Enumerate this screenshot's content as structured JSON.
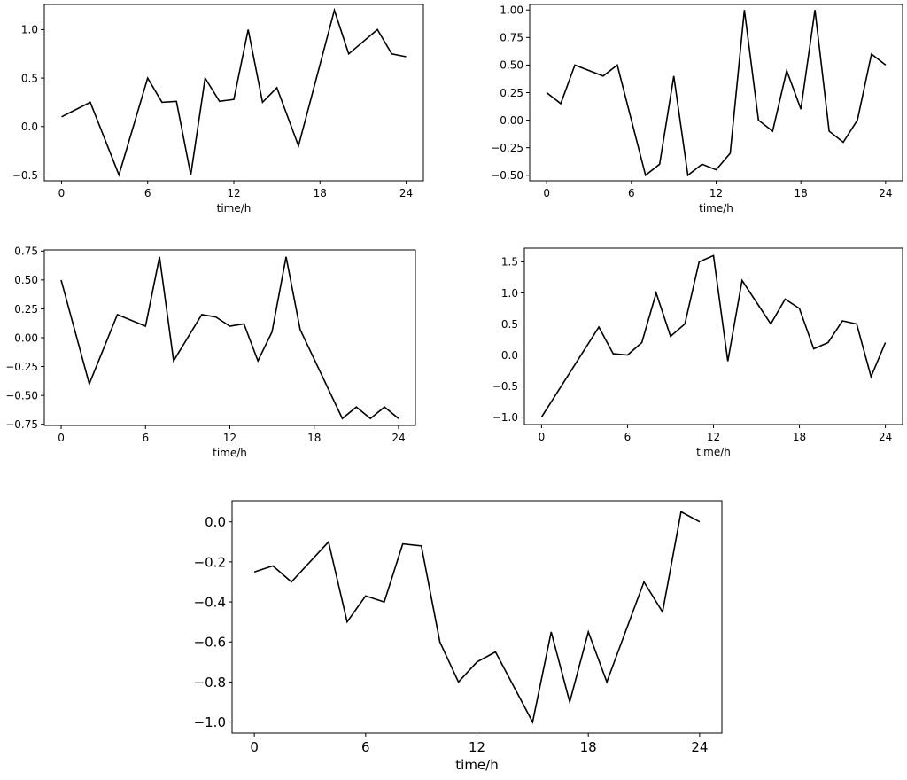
{
  "chart_data": [
    {
      "type": "line",
      "xlabel": "time/h",
      "ylabel": "",
      "title": "",
      "grid": false,
      "legend": "none",
      "xlim": [
        -1.2,
        25.2
      ],
      "ylim": [
        -0.56,
        1.26
      ],
      "xticks": [
        0,
        6,
        12,
        18,
        24
      ],
      "xtick_labels": [
        "0",
        "6",
        "12",
        "18",
        "24"
      ],
      "yticks": [
        -0.5,
        0.0,
        0.5,
        1.0
      ],
      "ytick_labels": [
        "−0.5",
        "0.0",
        "0.5",
        "1.0"
      ],
      "series": [
        {
          "color": "#000000",
          "x": [
            0,
            2,
            4,
            6,
            7,
            8,
            9,
            10,
            11,
            12,
            13,
            14,
            15,
            16.5,
            19,
            20,
            22,
            23,
            24
          ],
          "y": [
            0.1,
            0.25,
            -0.5,
            0.5,
            0.25,
            0.26,
            -0.5,
            0.5,
            0.26,
            0.28,
            1.0,
            0.25,
            0.4,
            -0.2,
            1.2,
            0.75,
            1.0,
            0.75,
            0.72
          ]
        }
      ]
    },
    {
      "type": "line",
      "xlabel": "time/h",
      "ylabel": "",
      "title": "",
      "grid": false,
      "legend": "none",
      "xlim": [
        -1.2,
        25.2
      ],
      "ylim": [
        -0.55,
        1.05
      ],
      "xticks": [
        0,
        6,
        12,
        18,
        24
      ],
      "xtick_labels": [
        "0",
        "6",
        "12",
        "18",
        "24"
      ],
      "yticks": [
        -0.5,
        -0.25,
        0.0,
        0.25,
        0.5,
        0.75,
        1.0
      ],
      "ytick_labels": [
        "−0.50",
        "−0.25",
        "0.00",
        "0.25",
        "0.50",
        "0.75",
        "1.00"
      ],
      "series": [
        {
          "color": "#000000",
          "x": [
            0,
            1,
            2,
            4,
            5,
            7,
            8,
            9,
            10,
            11,
            12,
            13,
            14,
            15,
            16,
            17,
            18,
            19,
            20,
            21,
            22,
            23,
            24
          ],
          "y": [
            0.25,
            0.15,
            0.5,
            0.4,
            0.5,
            -0.5,
            -0.4,
            0.4,
            -0.5,
            -0.4,
            -0.45,
            -0.3,
            1.0,
            0.0,
            -0.1,
            0.45,
            0.1,
            1.0,
            -0.1,
            -0.2,
            0.0,
            0.6,
            0.5
          ]
        }
      ]
    },
    {
      "type": "line",
      "xlabel": "time/h",
      "ylabel": "",
      "title": "",
      "grid": false,
      "legend": "none",
      "xlim": [
        -1.2,
        25.2
      ],
      "ylim": [
        -0.76,
        0.76
      ],
      "xticks": [
        0,
        6,
        12,
        18,
        24
      ],
      "xtick_labels": [
        "0",
        "6",
        "12",
        "18",
        "24"
      ],
      "yticks": [
        -0.75,
        -0.5,
        -0.25,
        0.0,
        0.25,
        0.5,
        0.75
      ],
      "ytick_labels": [
        "−0.75",
        "−0.50",
        "−0.25",
        "0.00",
        "0.25",
        "0.50",
        "0.75"
      ],
      "series": [
        {
          "color": "#000000",
          "x": [
            0,
            2,
            4,
            6,
            7,
            8,
            10,
            11,
            12,
            13,
            14,
            15,
            16,
            17,
            20,
            21,
            22,
            23,
            24
          ],
          "y": [
            0.5,
            -0.4,
            0.2,
            0.1,
            0.7,
            -0.2,
            0.2,
            0.18,
            0.1,
            0.12,
            -0.2,
            0.05,
            0.7,
            0.07,
            -0.7,
            -0.6,
            -0.7,
            -0.6,
            -0.7
          ]
        }
      ]
    },
    {
      "type": "line",
      "xlabel": "time/h",
      "ylabel": "",
      "title": "",
      "grid": false,
      "legend": "none",
      "xlim": [
        -1.2,
        25.2
      ],
      "ylim": [
        -1.12,
        1.72
      ],
      "xticks": [
        0,
        6,
        12,
        18,
        24
      ],
      "xtick_labels": [
        "0",
        "6",
        "12",
        "18",
        "24"
      ],
      "yticks": [
        -1.0,
        -0.5,
        0.0,
        0.5,
        1.0,
        1.5
      ],
      "ytick_labels": [
        "−1.0",
        "−0.5",
        "0.0",
        "0.5",
        "1.0",
        "1.5"
      ],
      "series": [
        {
          "color": "#000000",
          "x": [
            0,
            4,
            5,
            6,
            7,
            8,
            9,
            10,
            11,
            12,
            13,
            14,
            16,
            17,
            18,
            19,
            20,
            21,
            22,
            23,
            24
          ],
          "y": [
            -1.0,
            0.45,
            0.02,
            0.0,
            0.2,
            1.0,
            0.3,
            0.5,
            1.5,
            1.6,
            -0.1,
            1.2,
            0.5,
            0.9,
            0.75,
            0.1,
            0.2,
            0.55,
            0.5,
            -0.35,
            0.2
          ]
        }
      ]
    },
    {
      "type": "line",
      "xlabel": "time/h",
      "ylabel": "",
      "title": "",
      "grid": false,
      "legend": "none",
      "xlim": [
        -1.2,
        25.2
      ],
      "ylim": [
        -1.055,
        0.105
      ],
      "xticks": [
        0,
        6,
        12,
        18,
        24
      ],
      "xtick_labels": [
        "0",
        "6",
        "12",
        "18",
        "24"
      ],
      "yticks": [
        -1.0,
        -0.8,
        -0.6,
        -0.4,
        -0.2,
        0.0
      ],
      "ytick_labels": [
        "−1.0",
        "−0.8",
        "−0.6",
        "−0.4",
        "−0.2",
        "0.0"
      ],
      "series": [
        {
          "color": "#000000",
          "x": [
            0,
            1,
            2,
            4,
            5,
            6,
            7,
            8,
            9,
            10,
            11,
            12,
            13,
            15,
            16,
            17,
            18,
            19,
            21,
            22,
            23,
            24
          ],
          "y": [
            -0.25,
            -0.22,
            -0.3,
            -0.1,
            -0.5,
            -0.37,
            -0.4,
            -0.11,
            -0.12,
            -0.6,
            -0.8,
            -0.7,
            -0.65,
            -1.0,
            -0.55,
            -0.9,
            -0.55,
            -0.8,
            -0.3,
            -0.45,
            0.05,
            0.0
          ]
        }
      ]
    }
  ]
}
